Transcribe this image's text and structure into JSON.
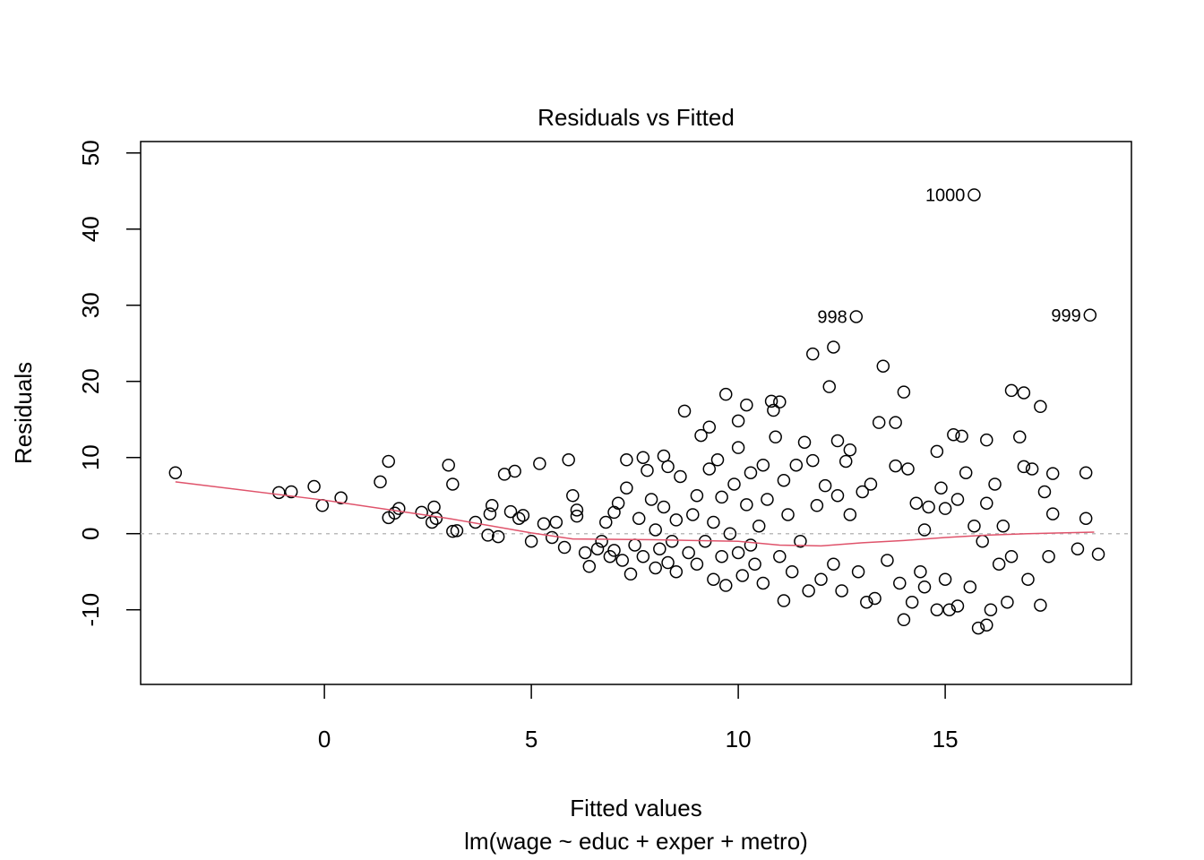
{
  "chart_data": {
    "type": "scatter",
    "title": "Residuals vs Fitted",
    "x_label": "Fitted values",
    "subtitle": "lm(wage ~ educ + exper + metro)",
    "y_label": "Residuals",
    "color": "#000000",
    "x": [
      -3.6,
      -1.1,
      -0.8,
      -0.25,
      -0.05,
      0.4,
      1.35,
      1.55,
      1.55,
      1.7,
      1.8,
      2.35,
      2.6,
      2.65,
      2.7,
      3.0,
      3.1,
      3.1,
      3.2,
      3.65,
      3.95,
      4.0,
      4.05,
      4.2,
      4.35,
      4.5,
      4.6,
      4.7,
      4.8,
      5.2,
      5.0,
      5.3,
      5.5,
      5.6,
      5.8,
      5.9,
      6.0,
      6.1,
      6.1,
      6.3,
      6.4,
      6.6,
      6.7,
      6.8,
      6.9,
      7.0,
      7.0,
      7.1,
      7.2,
      7.3,
      7.3,
      7.4,
      7.5,
      7.6,
      7.7,
      7.7,
      7.8,
      7.9,
      8.0,
      8.0,
      8.1,
      8.2,
      8.2,
      8.3,
      8.3,
      8.4,
      8.5,
      8.5,
      8.6,
      8.7,
      8.8,
      8.9,
      9.0,
      9.0,
      9.1,
      9.2,
      9.3,
      9.3,
      9.4,
      9.4,
      9.5,
      9.6,
      9.6,
      9.7,
      9.7,
      9.8,
      9.9,
      10.0,
      10.0,
      10.0,
      10.1,
      10.2,
      10.2,
      10.3,
      10.3,
      10.4,
      10.5,
      10.6,
      10.6,
      10.7,
      10.8,
      10.85,
      10.9,
      11.0,
      11.0,
      11.1,
      11.1,
      11.2,
      11.3,
      11.4,
      11.5,
      11.6,
      11.7,
      11.8,
      11.8,
      11.9,
      12.0,
      12.1,
      12.2,
      12.3,
      12.3,
      12.4,
      12.4,
      12.5,
      12.6,
      12.7,
      12.7,
      12.85,
      12.9,
      13.0,
      13.1,
      13.2,
      13.3,
      13.5,
      13.4,
      13.6,
      13.8,
      13.8,
      13.9,
      14.0,
      14.0,
      14.1,
      14.2,
      14.3,
      14.4,
      14.5,
      14.6,
      14.8,
      14.8,
      14.9,
      15.0,
      15.1,
      15.2,
      15.3,
      15.3,
      15.4,
      15.5,
      15.6,
      15.7,
      15.7,
      15.8,
      15.9,
      16.0,
      16.0,
      16.1,
      16.2,
      16.3,
      16.5,
      16.6,
      16.6,
      16.8,
      16.9,
      16.9,
      17.0,
      17.1,
      17.3,
      17.3,
      17.5,
      17.6,
      18.5,
      17.4,
      17.6,
      18.2,
      18.4,
      18.4,
      18.7,
      16.4,
      16.0,
      15.0,
      14.5
    ],
    "values": [
      8,
      5.4,
      5.5,
      6.2,
      3.7,
      4.7,
      6.8,
      9.5,
      2.1,
      2.7,
      3.3,
      2.8,
      1.5,
      3.5,
      2,
      9,
      6.5,
      0.3,
      0.4,
      1.5,
      -0.2,
      2.6,
      3.7,
      -0.4,
      7.8,
      2.9,
      8.2,
      2,
      2.4,
      9.2,
      -1,
      1.3,
      -0.5,
      1.5,
      -1.8,
      9.7,
      5,
      3.1,
      2.3,
      -2.5,
      -4.3,
      -2,
      -1,
      1.5,
      -3,
      -2.2,
      2.8,
      4,
      -3.5,
      6,
      9.7,
      -5.3,
      -1.5,
      2,
      10,
      -3,
      8.3,
      4.5,
      -4.5,
      0.5,
      -2,
      10.2,
      3.5,
      -3.8,
      8.8,
      -1,
      1.8,
      -5,
      7.5,
      16.1,
      -2.5,
      2.5,
      -4,
      5,
      12.9,
      -1,
      14,
      8.5,
      -6,
      1.5,
      9.7,
      4.8,
      -3,
      18.3,
      -6.8,
      0,
      6.5,
      -2.5,
      14.8,
      11.3,
      -5.5,
      3.8,
      16.9,
      -1.5,
      8,
      -4,
      1,
      9,
      -6.5,
      4.5,
      17.4,
      16.2,
      12.7,
      17.3,
      -3,
      7,
      -8.8,
      2.5,
      -5,
      9,
      -1,
      12,
      -7.5,
      23.6,
      9.6,
      3.7,
      -6,
      6.3,
      19.3,
      24.5,
      -4,
      12.2,
      5,
      -7.5,
      9.5,
      11,
      2.5,
      28.5,
      -5,
      5.5,
      -9,
      6.5,
      -8.5,
      22,
      14.6,
      -3.5,
      14.6,
      8.9,
      -6.5,
      18.6,
      -11.3,
      8.5,
      -9,
      4,
      -5,
      -7,
      3.5,
      10.8,
      -10,
      6,
      -6,
      -10,
      13,
      4.5,
      -9.5,
      12.8,
      8,
      -7,
      44.5,
      1,
      -12.4,
      -1,
      12.3,
      -12,
      -10,
      6.5,
      -4,
      -9,
      18.8,
      -3,
      12.7,
      18.5,
      8.8,
      -6,
      8.5,
      16.7,
      -9.4,
      -3,
      7.9,
      28.7,
      5.5,
      2.6,
      -2,
      8,
      2,
      -2.7,
      1,
      4,
      3.3,
      0.5
    ],
    "smooth": {
      "color": "#DF536B",
      "x": [
        -3.6,
        0,
        3,
        5,
        6,
        8,
        10,
        11,
        12,
        13,
        14,
        15,
        16,
        17,
        18.6
      ],
      "values": [
        6.8,
        4.4,
        2,
        0.1,
        -0.7,
        -0.8,
        -1,
        -1.5,
        -1.6,
        -1.2,
        -0.9,
        -0.5,
        -0.2,
        0,
        0.2
      ]
    },
    "reference_line": {
      "value": 0,
      "color": "#bbbbbb"
    },
    "annotations": [
      {
        "text": "1000",
        "x": 15.7,
        "y": 44.5
      },
      {
        "text": "998",
        "x": 12.85,
        "y": 28.5
      },
      {
        "text": "999",
        "x": 18.5,
        "y": 28.7
      }
    ],
    "xlim": [
      -4.44,
      19.5
    ],
    "ylim": [
      -19.8,
      51.5
    ],
    "xticks": [
      0,
      5,
      10,
      15
    ],
    "yticks": [
      -10,
      0,
      10,
      20,
      30,
      40,
      50
    ]
  }
}
